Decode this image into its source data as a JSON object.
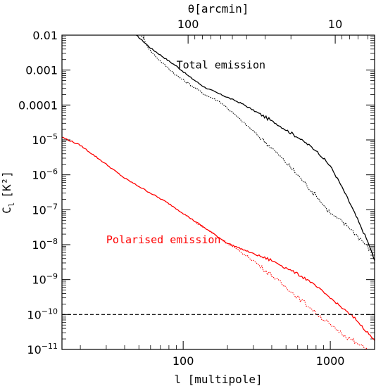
{
  "chart_data": {
    "type": "line",
    "xscale": "log",
    "yscale": "log",
    "xlim": [
      15,
      2000
    ],
    "ylim": [
      1e-11,
      0.01
    ],
    "xlabel": "l [multipole]",
    "ylabel_main": "C",
    "ylabel_sub": "l",
    "ylabel_unit": "[K²]",
    "top_axis_label": "θ[arcmin]",
    "top_ticks": [
      {
        "label": "100",
        "multipole": 108
      },
      {
        "label": "10",
        "multipole": 1080
      }
    ],
    "x_ticks": [
      {
        "label": "100",
        "value": 100
      },
      {
        "label": "1000",
        "value": 1000
      }
    ],
    "y_ticks": [
      {
        "label": "0.01",
        "exp": -2,
        "style": "decimal"
      },
      {
        "label": "0.001",
        "exp": -3,
        "style": "decimal"
      },
      {
        "label": "0.0001",
        "exp": -4,
        "style": "decimal"
      },
      {
        "label": "10",
        "sup": "−5",
        "exp": -5,
        "style": "power"
      },
      {
        "label": "10",
        "sup": "−6",
        "exp": -6,
        "style": "power"
      },
      {
        "label": "10",
        "sup": "−7",
        "exp": -7,
        "style": "power"
      },
      {
        "label": "10",
        "sup": "−8",
        "exp": -8,
        "style": "power"
      },
      {
        "label": "10",
        "sup": "−9",
        "exp": -9,
        "style": "power"
      },
      {
        "label": "10",
        "sup": "−10",
        "exp": -10,
        "style": "power"
      },
      {
        "label": "10",
        "sup": "−11",
        "exp": -11,
        "style": "power"
      }
    ],
    "annotations": [
      {
        "text": "Total emission",
        "color": "#000000",
        "near_l": 90,
        "near_cl": 0.0011
      },
      {
        "text": "Polarised emission",
        "color": "#ff0000",
        "near_l": 30,
        "near_cl": 1.1e-08
      }
    ],
    "series": [
      {
        "color": "#000000",
        "style": "solid",
        "points": [
          [
            48,
            0.01
          ],
          [
            60,
            0.0043
          ],
          [
            70,
            0.0027
          ],
          [
            80,
            0.0018
          ],
          [
            90,
            0.0013
          ],
          [
            110,
            0.00065
          ],
          [
            140,
            0.00032
          ],
          [
            180,
            0.0002
          ],
          [
            250,
            0.00011
          ],
          [
            400,
            3.5e-05
          ],
          [
            600,
            1.2e-05
          ],
          [
            800,
            5e-06
          ],
          [
            1000,
            1.8e-06
          ],
          [
            1200,
            4.5e-07
          ],
          [
            1400,
            1.2e-07
          ],
          [
            1600,
            3.5e-08
          ],
          [
            1800,
            1.2e-08
          ],
          [
            2000,
            3.5e-09
          ]
        ]
      },
      {
        "color": "#000000",
        "style": "dotted",
        "points": [
          [
            52,
            0.01
          ],
          [
            60,
            0.0035
          ],
          [
            70,
            0.0018
          ],
          [
            80,
            0.0011
          ],
          [
            90,
            0.0007
          ],
          [
            110,
            0.0004
          ],
          [
            140,
            0.0002
          ],
          [
            180,
            0.00012
          ],
          [
            250,
            3.5e-05
          ],
          [
            400,
            6e-06
          ],
          [
            600,
            1e-06
          ],
          [
            800,
            2.5e-07
          ],
          [
            1000,
            8e-08
          ],
          [
            1300,
            3.5e-08
          ],
          [
            1600,
            1.5e-08
          ],
          [
            2000,
            5e-09
          ]
        ]
      },
      {
        "color": "#ff0000",
        "style": "solid",
        "points": [
          [
            15,
            1.2e-05
          ],
          [
            20,
            7e-06
          ],
          [
            30,
            2e-06
          ],
          [
            40,
            8e-07
          ],
          [
            60,
            3e-07
          ],
          [
            80,
            1.5e-07
          ],
          [
            110,
            6e-08
          ],
          [
            150,
            2.5e-08
          ],
          [
            200,
            1.1e-08
          ],
          [
            300,
            5.5e-09
          ],
          [
            400,
            3.5e-09
          ],
          [
            500,
            2.2e-09
          ],
          [
            700,
            1e-09
          ],
          [
            1000,
            3e-10
          ],
          [
            1500,
            7e-11
          ],
          [
            2000,
            1.8e-11
          ]
        ]
      },
      {
        "color": "#ff0000",
        "style": "dotted",
        "points": [
          [
            120,
            4.5e-08
          ],
          [
            150,
            2.5e-08
          ],
          [
            200,
            1.1e-08
          ],
          [
            300,
            3.5e-09
          ],
          [
            400,
            1.3e-09
          ],
          [
            500,
            6e-10
          ],
          [
            700,
            1.8e-10
          ],
          [
            1000,
            5e-11
          ],
          [
            1500,
            1.5e-11
          ],
          [
            1800,
            1e-11
          ]
        ]
      },
      {
        "color": "#000000",
        "style": "dashed",
        "points": [
          [
            15,
            1e-10
          ],
          [
            2000,
            1e-10
          ]
        ]
      }
    ]
  }
}
